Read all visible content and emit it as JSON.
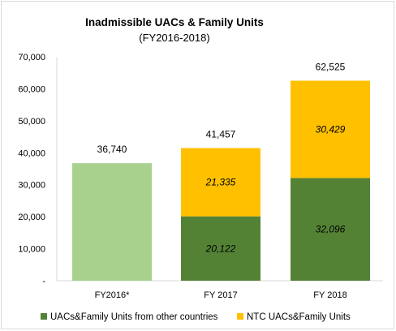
{
  "chart_data": {
    "type": "bar",
    "stacked": true,
    "title": "Inadmissible UACs & Family Units",
    "subtitle": "(FY2016-2018)",
    "categories": [
      "FY2016*",
      "FY 2017",
      "FY 2018"
    ],
    "ylim": [
      0,
      70000
    ],
    "yticks": [
      0,
      10000,
      20000,
      30000,
      40000,
      50000,
      60000,
      70000
    ],
    "ytick_labels": [
      "-",
      "10,000",
      "20,000",
      "30,000",
      "40,000",
      "50,000",
      "60,000",
      "70,000"
    ],
    "grid": false,
    "legend_position": "bottom",
    "series": [
      {
        "name": "UACs&Family Units from other countries",
        "color": "#548235",
        "values": [
          null,
          20122,
          32096
        ],
        "labels": [
          "",
          "20,122",
          "32,096"
        ]
      },
      {
        "name": "NTC UACs&Family Units",
        "color": "#ffc000",
        "values": [
          null,
          21335,
          30429
        ],
        "labels": [
          "",
          "21,335",
          "30,429"
        ]
      }
    ],
    "totals": {
      "values": [
        36740,
        41457,
        62525
      ],
      "labels": [
        "36,740",
        "41,457",
        "62,525"
      ]
    },
    "unsplit_color": "#a9d18e"
  }
}
